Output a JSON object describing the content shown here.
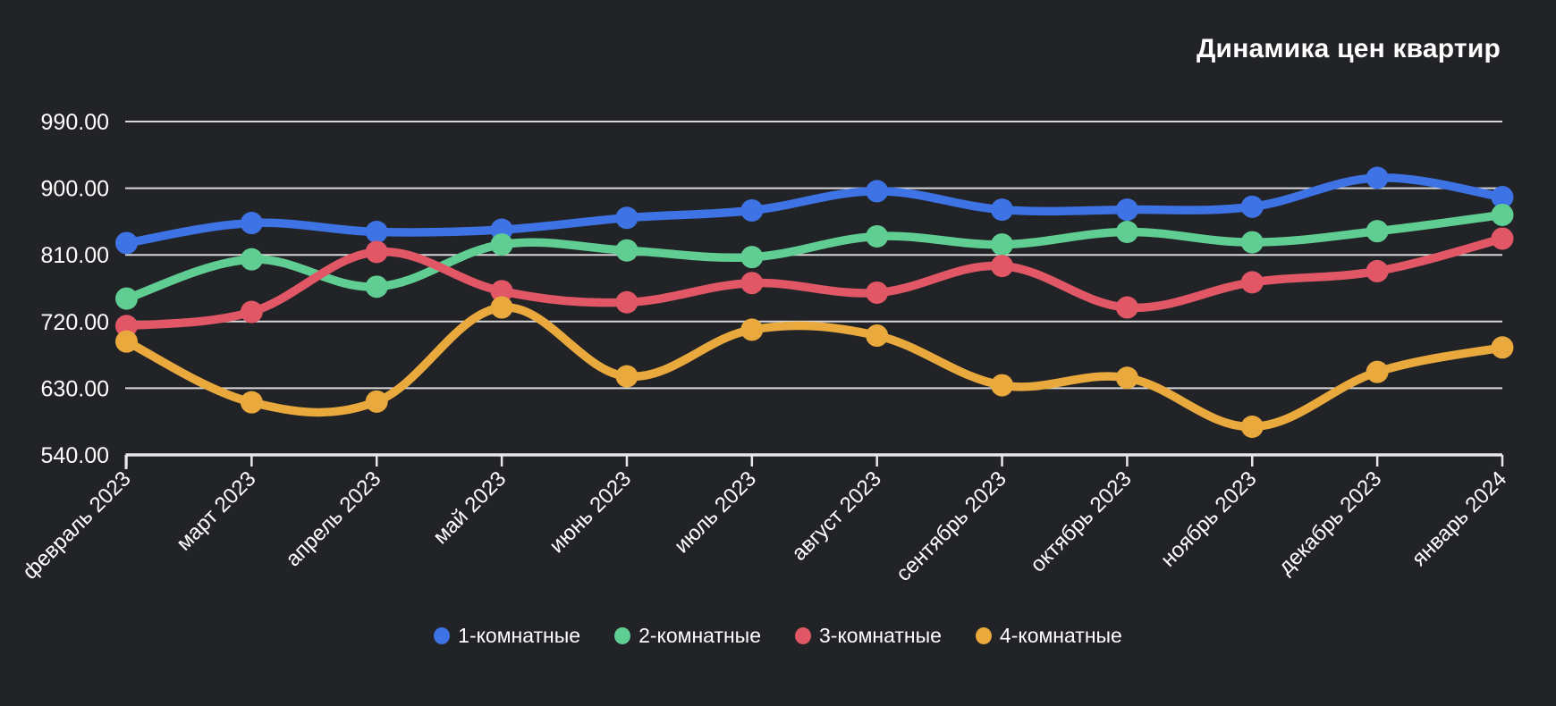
{
  "chart_data": {
    "type": "line",
    "title": "Динамика цен квартир",
    "categories": [
      "февраль 2023",
      "март 2023",
      "апрель 2023",
      "май 2023",
      "июнь 2023",
      "июль 2023",
      "август 2023",
      "сентябрь 2023",
      "октябрь 2023",
      "ноябрь 2023",
      "декабрь 2023",
      "январь 2024"
    ],
    "series": [
      {
        "name": "1-комнатные",
        "color": "#3d73e5",
        "values": [
          826,
          853,
          841,
          844,
          860,
          870,
          896,
          871,
          871,
          875,
          914,
          888
        ]
      },
      {
        "name": "2-комнатные",
        "color": "#60ce92",
        "values": [
          751,
          804,
          767,
          824,
          816,
          807,
          835,
          824,
          841,
          827,
          842,
          864
        ]
      },
      {
        "name": "3-комнатные",
        "color": "#e15765",
        "values": [
          714,
          733,
          814,
          761,
          746,
          772,
          759,
          795,
          739,
          773,
          788,
          832
        ]
      },
      {
        "name": "4-комнатные",
        "color": "#e9a93d",
        "values": [
          693,
          611,
          612,
          739,
          646,
          709,
          701,
          634,
          644,
          578,
          652,
          685
        ]
      }
    ],
    "ylim": [
      540,
      990
    ],
    "y_tick_values": [
      990,
      900,
      810,
      720,
      630,
      540
    ],
    "y_tick_labels": [
      "990.00",
      "900.00",
      "810.00",
      "720.00",
      "630.00",
      "540.00"
    ],
    "grid": true,
    "legend_position": "bottom",
    "colors": {
      "background": "#222327",
      "grid": "#e8e8e8",
      "axis": "#e8e8e8",
      "text": "#ffffff"
    }
  }
}
